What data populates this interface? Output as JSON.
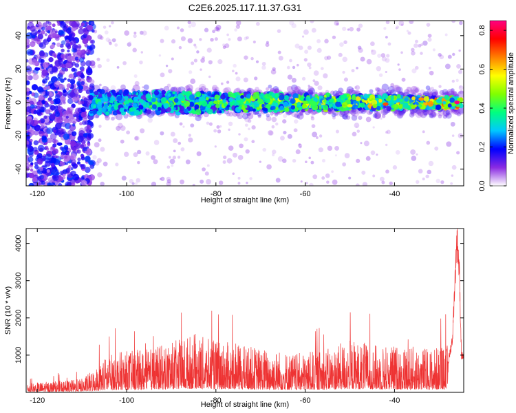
{
  "title": "C2E6.2025.117.11.37.G31",
  "chart_data": [
    {
      "type": "heatmap",
      "xlabel": "Height of straight line (km)",
      "ylabel": "Frequency (Hz)",
      "xlim": [
        -122.5,
        -24.5
      ],
      "ylim": [
        -50,
        49
      ],
      "x_ticks": [
        -120,
        -100,
        -80,
        -60,
        -40
      ],
      "y_ticks": [
        -40,
        -20,
        0,
        20,
        40
      ],
      "colorbar": {
        "label": "Normalized spectral amplitude",
        "range": [
          0,
          0.85
        ],
        "ticks": [
          0.0,
          0.2,
          0.4,
          0.6,
          0.8
        ],
        "stops": [
          "#ffffff",
          "#8a2be2",
          "#0000ff",
          "#00c8ff",
          "#00ff80",
          "#80ff00",
          "#ffff00",
          "#ff8000",
          "#ff0000",
          "#ff0080"
        ]
      },
      "band": {
        "center_hz": 0,
        "start_km": -108,
        "end_km": -25
      },
      "features": [
        {
          "x": -120,
          "y": 20,
          "amp": 0.18
        },
        {
          "x": -115,
          "y": -25,
          "amp": 0.18
        },
        {
          "x": -112,
          "y": 38,
          "amp": 0.16
        },
        {
          "x": -100,
          "y": 0,
          "amp": 0.35
        },
        {
          "x": -90,
          "y": 2,
          "amp": 0.4
        },
        {
          "x": -80,
          "y": 0,
          "amp": 0.45
        },
        {
          "x": -70,
          "y": 1,
          "amp": 0.42
        },
        {
          "x": -60,
          "y": 0,
          "amp": 0.45
        },
        {
          "x": -50,
          "y": -2,
          "amp": 0.55
        },
        {
          "x": -42,
          "y": -1,
          "amp": 0.7
        },
        {
          "x": -34,
          "y": 2,
          "amp": 0.65
        },
        {
          "x": -26,
          "y": 0,
          "amp": 0.85
        }
      ]
    },
    {
      "type": "line",
      "xlabel": "Height of straight line (km)",
      "ylabel": "SNR (10 * v/v)",
      "xlim": [
        -122.5,
        -24.5
      ],
      "ylim": [
        0,
        4400
      ],
      "x_ticks": [
        -120,
        -100,
        -80,
        -60,
        -40
      ],
      "y_ticks": [
        1000,
        2000,
        3000,
        4000
      ],
      "line_color": "#ee3333",
      "series": [
        {
          "x": [
            -122,
            -118,
            -114,
            -110,
            -108,
            -106,
            -104,
            -100,
            -96,
            -92,
            -88,
            -85,
            -82,
            -78,
            -74,
            -70,
            -66,
            -62,
            -58,
            -54,
            -50,
            -48,
            -44,
            -40,
            -36,
            -32,
            -28,
            -27,
            -26.5,
            -26,
            -25.5,
            -25
          ],
          "y": [
            150,
            180,
            200,
            230,
            350,
            500,
            650,
            700,
            720,
            800,
            900,
            1000,
            900,
            850,
            800,
            750,
            720,
            650,
            700,
            750,
            900,
            850,
            800,
            800,
            780,
            750,
            800,
            1500,
            3000,
            4300,
            3400,
            1000
          ]
        }
      ]
    }
  ]
}
